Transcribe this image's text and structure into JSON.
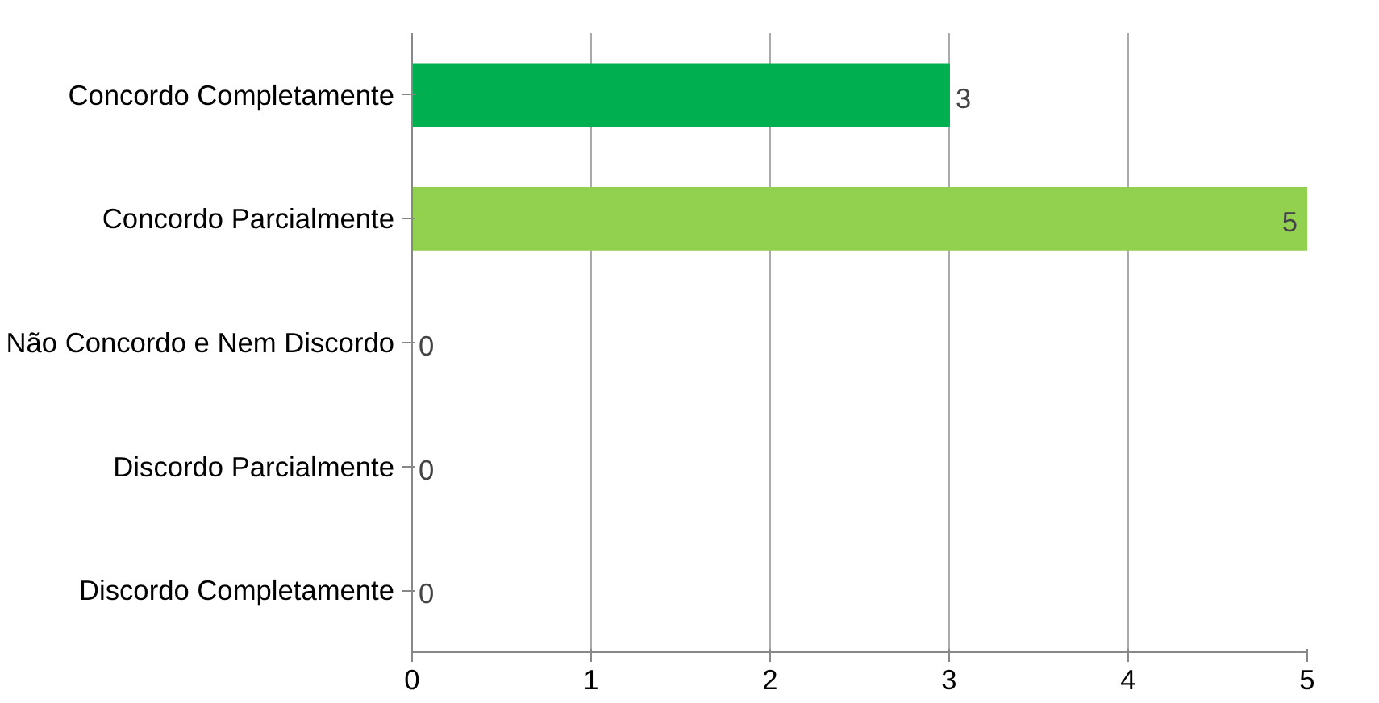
{
  "chart_data": {
    "type": "bar",
    "orientation": "horizontal",
    "categories": [
      "Concordo Completamente",
      "Concordo Parcialmente",
      "Não Concordo e Nem Discordo",
      "Discordo Parcialmente",
      "Discordo Completamente"
    ],
    "values": [
      3,
      5,
      0,
      0,
      0
    ],
    "colors": [
      "#00b050",
      "#92d050",
      "#595959",
      "#bf9000",
      "#c00000"
    ],
    "xlim": [
      0,
      5
    ],
    "xticks": [
      0,
      1,
      2,
      3,
      4,
      5
    ],
    "grid": "x",
    "data_labels": true
  }
}
